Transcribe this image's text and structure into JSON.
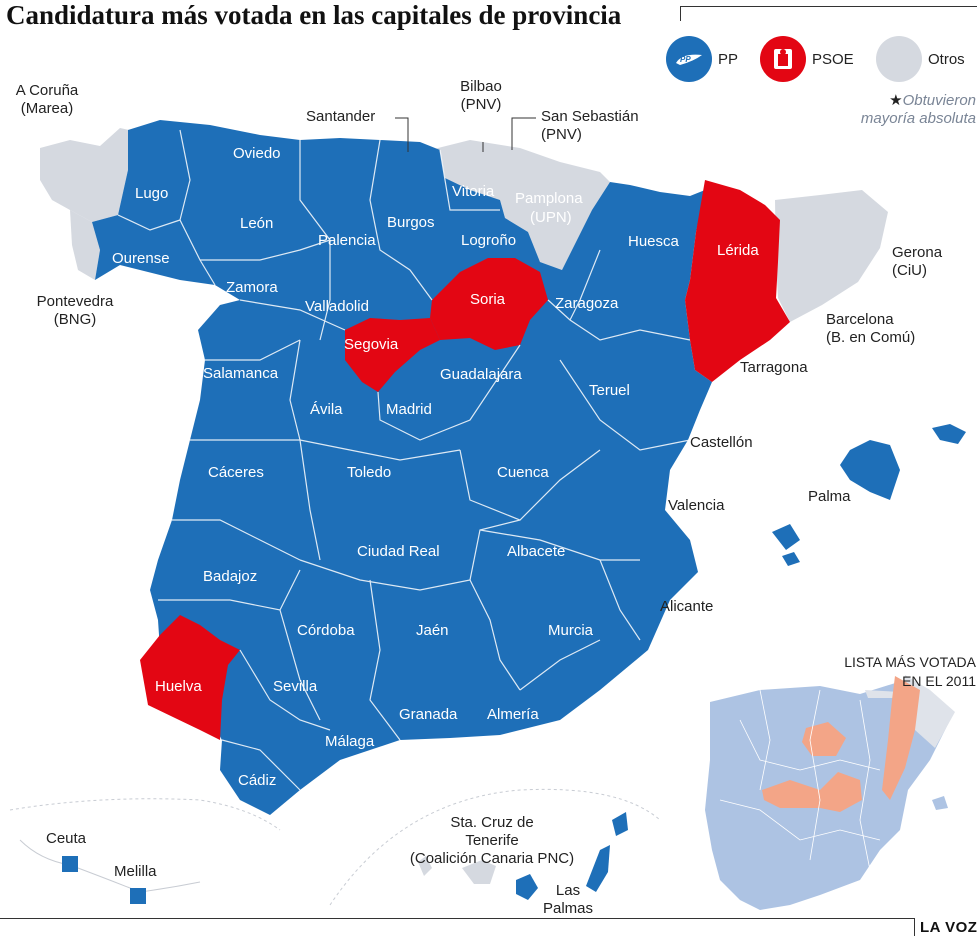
{
  "title": "Candidatura más votada en las capitales de provincia",
  "colors": {
    "pp": "#1e6fb8",
    "psoe": "#e30613",
    "otros": "#d5d9e0",
    "pp_2011": "#adc3e3",
    "psoe_2011": "#f3a587",
    "otros_2011": "#dfe3ea",
    "border": "#ffffff"
  },
  "legend": {
    "items": [
      {
        "key": "pp",
        "label": "PP",
        "icon": "pp-logo-icon"
      },
      {
        "key": "psoe",
        "label": "PSOE",
        "icon": "psoe-logo-icon"
      },
      {
        "key": "otros",
        "label": "Otros",
        "icon": "none"
      }
    ],
    "star": "★",
    "note_line1": "Obtuvieron",
    "note_line2": "mayoría absoluta"
  },
  "capitals_inside": [
    {
      "id": "oviedo",
      "name": "Oviedo",
      "party": "pp"
    },
    {
      "id": "lugo",
      "name": "Lugo",
      "party": "pp"
    },
    {
      "id": "ourense",
      "name": "Ourense",
      "party": "pp"
    },
    {
      "id": "leon",
      "name": "León",
      "party": "pp"
    },
    {
      "id": "palencia",
      "name": "Palencia",
      "party": "pp"
    },
    {
      "id": "burgos",
      "name": "Burgos",
      "party": "pp"
    },
    {
      "id": "vitoria",
      "name": "Vitoria",
      "party": "pp"
    },
    {
      "id": "pamplona",
      "name": "Pamplona",
      "party": "otros"
    },
    {
      "id": "upn",
      "name": "(UPN)",
      "party": "otros"
    },
    {
      "id": "logrono",
      "name": "Logroño",
      "party": "pp"
    },
    {
      "id": "huesca",
      "name": "Huesca",
      "party": "pp"
    },
    {
      "id": "lerida",
      "name": "Lérida",
      "party": "psoe"
    },
    {
      "id": "zamora",
      "name": "Zamora",
      "party": "pp"
    },
    {
      "id": "valladolid",
      "name": "Valladolid",
      "party": "pp"
    },
    {
      "id": "soria",
      "name": "Soria",
      "party": "psoe"
    },
    {
      "id": "zaragoza",
      "name": "Zaragoza",
      "party": "pp"
    },
    {
      "id": "segovia",
      "name": "Segovia",
      "party": "psoe"
    },
    {
      "id": "salamanca",
      "name": "Salamanca",
      "party": "pp"
    },
    {
      "id": "guadalajara",
      "name": "Guadalajara",
      "party": "pp"
    },
    {
      "id": "teruel",
      "name": "Teruel",
      "party": "pp"
    },
    {
      "id": "avila",
      "name": "Ávila",
      "party": "pp"
    },
    {
      "id": "madrid",
      "name": "Madrid",
      "party": "pp"
    },
    {
      "id": "caceres",
      "name": "Cáceres",
      "party": "pp"
    },
    {
      "id": "toledo",
      "name": "Toledo",
      "party": "pp"
    },
    {
      "id": "cuenca",
      "name": "Cuenca",
      "party": "pp"
    },
    {
      "id": "ciudad-real",
      "name": "Ciudad Real",
      "party": "pp"
    },
    {
      "id": "albacete",
      "name": "Albacete",
      "party": "pp"
    },
    {
      "id": "badajoz",
      "name": "Badajoz",
      "party": "pp"
    },
    {
      "id": "cordoba",
      "name": "Córdoba",
      "party": "pp"
    },
    {
      "id": "jaen",
      "name": "Jaén",
      "party": "pp"
    },
    {
      "id": "murcia",
      "name": "Murcia",
      "party": "pp"
    },
    {
      "id": "huelva",
      "name": "Huelva",
      "party": "psoe"
    },
    {
      "id": "sevilla",
      "name": "Sevilla",
      "party": "pp"
    },
    {
      "id": "granada",
      "name": "Granada",
      "party": "pp"
    },
    {
      "id": "almeria",
      "name": "Almería",
      "party": "pp"
    },
    {
      "id": "malaga",
      "name": "Málaga",
      "party": "pp"
    },
    {
      "id": "cadiz",
      "name": "Cádiz",
      "party": "pp"
    }
  ],
  "capitals_outside": [
    {
      "id": "a-coruna",
      "line1": "A Coruña",
      "line2": "(Marea)",
      "party": "otros"
    },
    {
      "id": "pontevedra",
      "line1": "Pontevedra",
      "line2": "(BNG)",
      "party": "otros"
    },
    {
      "id": "santander",
      "line1": "Santander",
      "line2": "",
      "party": "pp"
    },
    {
      "id": "bilbao",
      "line1": "Bilbao",
      "line2": "(PNV)",
      "party": "otros"
    },
    {
      "id": "san-sebastian",
      "line1": "San Sebastián",
      "line2": "(PNV)",
      "party": "otros"
    },
    {
      "id": "gerona",
      "line1": "Gerona",
      "line2": "(CiU)",
      "party": "otros"
    },
    {
      "id": "barcelona",
      "line1": "Barcelona",
      "line2": "(B. en Comú)",
      "party": "otros"
    },
    {
      "id": "tarragona",
      "line1": "Tarragona",
      "line2": "",
      "party": "psoe"
    },
    {
      "id": "castellon",
      "line1": "Castellón",
      "line2": "",
      "party": "pp"
    },
    {
      "id": "valencia",
      "line1": "Valencia",
      "line2": "",
      "party": "pp"
    },
    {
      "id": "palma",
      "line1": "Palma",
      "line2": "",
      "party": "pp"
    },
    {
      "id": "alicante",
      "line1": "Alicante",
      "line2": "",
      "party": "pp"
    },
    {
      "id": "ceuta",
      "line1": "Ceuta",
      "line2": "",
      "party": "pp"
    },
    {
      "id": "melilla",
      "line1": "Melilla",
      "line2": "",
      "party": "pp"
    },
    {
      "id": "santa-cruz",
      "line1": "Sta. Cruz de",
      "line2": "Tenerife",
      "line3": "(Coalición Canaria PNC)",
      "party": "otros"
    },
    {
      "id": "las-palmas",
      "line1": "Las",
      "line2": "Palmas",
      "party": "pp"
    }
  ],
  "inset": {
    "title_line1": "LISTA MÁS VOTADA",
    "title_line2": "EN EL 2011"
  },
  "footer": {
    "brand": "LA VOZ"
  }
}
